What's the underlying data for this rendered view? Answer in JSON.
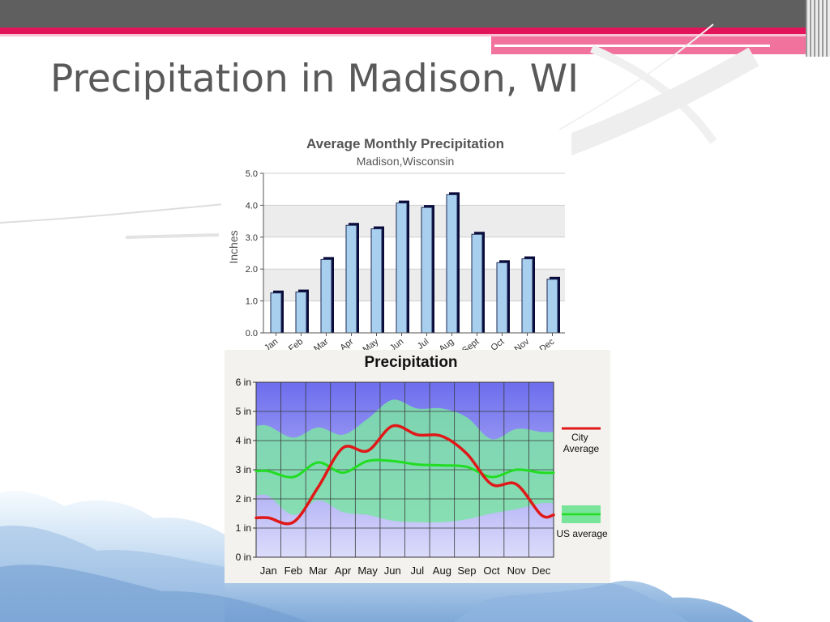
{
  "slide": {
    "title": "Precipitation in Madison, WI"
  },
  "chart_data": [
    {
      "type": "bar",
      "title": "Average Monthly Precipitation",
      "subtitle": "Madison,Wisconsin",
      "ylabel": "Inches",
      "xlabel": "",
      "ylim": [
        0,
        5
      ],
      "yticks": [
        "0.0",
        "1.0",
        "2.0",
        "3.0",
        "4.0",
        "5.0"
      ],
      "categories": [
        "Jan",
        "Feb",
        "Mar",
        "Apr",
        "May",
        "Jun",
        "Jul",
        "Aug",
        "Sept",
        "Oct",
        "Nov",
        "Dec"
      ],
      "values": [
        1.25,
        1.28,
        2.3,
        3.37,
        3.26,
        4.07,
        3.93,
        4.33,
        3.09,
        2.2,
        2.32,
        1.68
      ],
      "bar_color": "#a9cfee",
      "grid": true
    },
    {
      "type": "line",
      "title": "Precipitation",
      "ylim": [
        0,
        6
      ],
      "yticks": [
        "0 in",
        "1 in",
        "2 in",
        "3 in",
        "4 in",
        "5 in",
        "6 in"
      ],
      "categories": [
        "Jan",
        "Feb",
        "Mar",
        "Apr",
        "May",
        "Jun",
        "Jul",
        "Aug",
        "Sep",
        "Oct",
        "Nov",
        "Dec"
      ],
      "series": [
        {
          "name": "City Average",
          "color": "#e01818",
          "values": [
            1.35,
            1.2,
            2.4,
            3.75,
            3.65,
            4.5,
            4.2,
            4.15,
            3.55,
            2.5,
            2.5,
            1.45
          ]
        },
        {
          "name": "US average",
          "color": "#22dd22",
          "values": [
            2.95,
            2.75,
            3.25,
            2.9,
            3.3,
            3.3,
            3.18,
            3.15,
            3.1,
            2.75,
            3.0,
            2.9
          ]
        }
      ],
      "us_band": {
        "upper": [
          4.5,
          4.1,
          4.45,
          4.2,
          4.75,
          5.4,
          5.1,
          5.1,
          4.8,
          4.05,
          4.4,
          4.3
        ],
        "lower": [
          2.1,
          1.45,
          1.95,
          1.55,
          1.45,
          1.25,
          1.2,
          1.2,
          1.3,
          1.5,
          1.65,
          1.85
        ]
      },
      "legend": [
        "City Average",
        "US average"
      ],
      "legend_position": "right",
      "grid": true
    }
  ]
}
